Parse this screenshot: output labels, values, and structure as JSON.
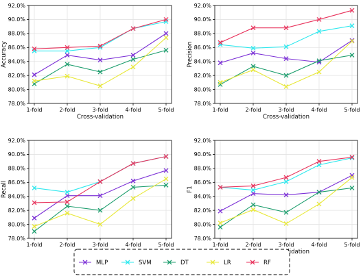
{
  "chart_data": [
    {
      "type": "line",
      "ylabel": "Accuracy",
      "xlabel": "Cross-validation",
      "categories": [
        "1-fold",
        "2-fold",
        "3-fold",
        "4-fold",
        "5-fold"
      ],
      "ylim": [
        78.0,
        92.0
      ],
      "yticks": [
        "78.0%",
        "80.0%",
        "82.0%",
        "84.0%",
        "86.0%",
        "88.0%",
        "90.0%",
        "92.0%"
      ],
      "grid": true,
      "series": [
        {
          "name": "MLP",
          "values": [
            82.1,
            84.9,
            84.2,
            84.9,
            88.0
          ]
        },
        {
          "name": "SVM",
          "values": [
            85.5,
            85.5,
            86.0,
            88.7,
            89.7
          ]
        },
        {
          "name": "DT",
          "values": [
            80.8,
            83.6,
            82.5,
            84.3,
            85.6
          ]
        },
        {
          "name": "LR",
          "values": [
            81.2,
            81.9,
            80.5,
            83.2,
            87.4
          ]
        },
        {
          "name": "RF",
          "values": [
            85.8,
            86.0,
            86.2,
            88.7,
            90.0
          ]
        }
      ]
    },
    {
      "type": "line",
      "ylabel": "Precision",
      "xlabel": "Cross-validation",
      "categories": [
        "1-fold",
        "2-fold",
        "3-fold",
        "4-fold",
        "5-fold"
      ],
      "ylim": [
        78.0,
        92.0
      ],
      "yticks": [
        "78.0%",
        "80.0%",
        "82.0%",
        "84.0%",
        "86.0%",
        "88.0%",
        "90.0%",
        "92.0%"
      ],
      "grid": true,
      "series": [
        {
          "name": "MLP",
          "values": [
            83.8,
            85.2,
            84.4,
            83.9,
            87.0
          ]
        },
        {
          "name": "SVM",
          "values": [
            86.4,
            85.9,
            86.1,
            88.3,
            89.1
          ]
        },
        {
          "name": "DT",
          "values": [
            80.7,
            83.3,
            82.0,
            84.1,
            84.9
          ]
        },
        {
          "name": "LR",
          "values": [
            81.0,
            82.8,
            80.4,
            82.5,
            86.9
          ]
        },
        {
          "name": "RF",
          "values": [
            86.7,
            88.8,
            88.8,
            90.0,
            91.3
          ]
        }
      ]
    },
    {
      "type": "line",
      "ylabel": "Recall",
      "xlabel": "Cross-validation",
      "categories": [
        "1-fold",
        "2-fold",
        "3-fold",
        "4-fold",
        "5-fold"
      ],
      "ylim": [
        78.0,
        92.0
      ],
      "yticks": [
        "78.0%",
        "80.0%",
        "82.0%",
        "84.0%",
        "86.0%",
        "88.0%",
        "90.0%",
        "92.0%"
      ],
      "grid": true,
      "series": [
        {
          "name": "MLP",
          "values": [
            80.9,
            84.1,
            84.1,
            86.2,
            87.7
          ]
        },
        {
          "name": "SVM",
          "values": [
            85.2,
            84.6,
            86.1,
            88.7,
            89.7
          ]
        },
        {
          "name": "DT",
          "values": [
            79.0,
            82.6,
            82.0,
            85.3,
            85.6
          ]
        },
        {
          "name": "LR",
          "values": [
            79.7,
            81.6,
            80.0,
            83.7,
            86.5
          ]
        },
        {
          "name": "RF",
          "values": [
            83.1,
            83.2,
            86.1,
            88.7,
            89.7
          ]
        }
      ]
    },
    {
      "type": "line",
      "ylabel": "F1",
      "xlabel": "Cross-validation",
      "categories": [
        "1-fold",
        "2-fold",
        "3-fold",
        "4-fold",
        "5-fold"
      ],
      "ylim": [
        78.0,
        92.0
      ],
      "yticks": [
        "78.0%",
        "80.0%",
        "82.0%",
        "84.0%",
        "86.0%",
        "88.0%",
        "90.0%",
        "92.0%"
      ],
      "grid": true,
      "series": [
        {
          "name": "MLP",
          "values": [
            81.9,
            84.4,
            84.2,
            84.6,
            87.0
          ]
        },
        {
          "name": "SVM",
          "values": [
            85.3,
            84.9,
            86.1,
            88.5,
            89.5
          ]
        },
        {
          "name": "DT",
          "values": [
            79.6,
            82.8,
            81.7,
            84.6,
            85.2
          ]
        },
        {
          "name": "LR",
          "values": [
            80.2,
            82.1,
            80.1,
            82.9,
            86.7
          ]
        },
        {
          "name": "RF",
          "values": [
            85.3,
            85.5,
            86.7,
            89.0,
            89.6
          ]
        }
      ]
    }
  ],
  "legend": {
    "placement": "bottom-center",
    "items": [
      {
        "name": "MLP",
        "color": "#7b2fd6"
      },
      {
        "name": "SVM",
        "color": "#2ee8ee"
      },
      {
        "name": "DT",
        "color": "#1e9e6e"
      },
      {
        "name": "LR",
        "color": "#e8e83a"
      },
      {
        "name": "RF",
        "color": "#e8335c"
      }
    ]
  },
  "colors": {
    "MLP": "#7b2fd6",
    "SVM": "#2ee8ee",
    "DT": "#1e9e6e",
    "LR": "#e8e83a",
    "RF": "#e8335c"
  },
  "marker": "x"
}
